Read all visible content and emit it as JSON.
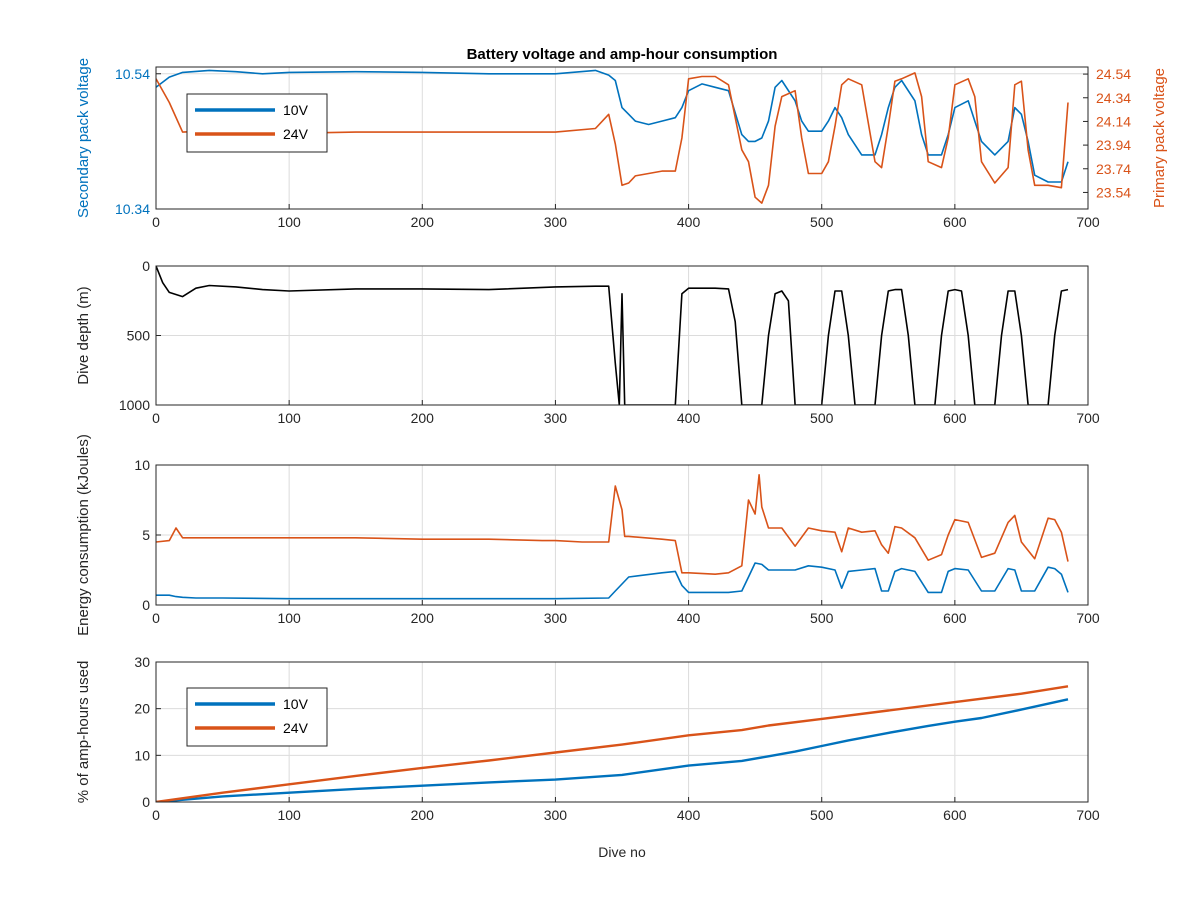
{
  "figure": {
    "title": "Battery voltage and amp-hour consumption",
    "xlabel": "Dive no"
  },
  "colors": {
    "series_10v": "#0072BD",
    "series_24v": "#D95319",
    "depth": "#000000",
    "grid": "#dcdcdc",
    "axis": "#262626"
  },
  "chart_data": [
    {
      "type": "line",
      "id": "voltage",
      "title": "Battery voltage and amp-hour consumption",
      "xlim": [
        0,
        700
      ],
      "xticks": [
        0,
        100,
        200,
        300,
        400,
        500,
        600,
        700
      ],
      "ylabel_left": "Secondary pack voltage",
      "ylim_left": [
        10.34,
        10.55
      ],
      "yticks_left": [
        10.34,
        10.54
      ],
      "ylabel_right": "Primary pack voltage",
      "ylim_right": [
        23.4,
        24.6
      ],
      "yticks_right": [
        23.54,
        23.74,
        23.94,
        24.14,
        24.34,
        24.54
      ],
      "legend": [
        "10V",
        "24V"
      ],
      "legend_position": "top-left",
      "grid": true,
      "series": [
        {
          "name": "10V",
          "axis": "left",
          "x": [
            0,
            10,
            20,
            40,
            60,
            80,
            100,
            150,
            200,
            250,
            300,
            330,
            340,
            345,
            350,
            355,
            360,
            370,
            380,
            390,
            395,
            400,
            410,
            420,
            430,
            440,
            445,
            450,
            455,
            460,
            465,
            470,
            480,
            485,
            490,
            500,
            505,
            510,
            515,
            520,
            530,
            540,
            545,
            550,
            555,
            560,
            570,
            575,
            580,
            590,
            595,
            600,
            610,
            615,
            620,
            630,
            640,
            645,
            650,
            655,
            660,
            670,
            680,
            685
          ],
          "y": [
            10.52,
            10.535,
            10.542,
            10.545,
            10.543,
            10.54,
            10.542,
            10.543,
            10.542,
            10.54,
            10.54,
            10.545,
            10.538,
            10.53,
            10.49,
            10.48,
            10.47,
            10.465,
            10.47,
            10.475,
            10.49,
            10.515,
            10.525,
            10.52,
            10.515,
            10.45,
            10.44,
            10.44,
            10.445,
            10.47,
            10.52,
            10.53,
            10.5,
            10.47,
            10.455,
            10.455,
            10.47,
            10.49,
            10.475,
            10.45,
            10.42,
            10.42,
            10.45,
            10.49,
            10.52,
            10.53,
            10.5,
            10.45,
            10.42,
            10.42,
            10.45,
            10.49,
            10.5,
            10.47,
            10.44,
            10.42,
            10.44,
            10.49,
            10.48,
            10.44,
            10.39,
            10.38,
            10.38,
            10.41
          ]
        },
        {
          "name": "24V",
          "axis": "right",
          "x": [
            0,
            10,
            20,
            40,
            60,
            80,
            100,
            150,
            200,
            250,
            300,
            330,
            340,
            345,
            350,
            355,
            360,
            370,
            380,
            390,
            395,
            400,
            410,
            420,
            430,
            440,
            445,
            450,
            455,
            460,
            465,
            470,
            480,
            485,
            490,
            500,
            505,
            510,
            515,
            520,
            530,
            540,
            545,
            550,
            555,
            560,
            570,
            575,
            580,
            590,
            595,
            600,
            610,
            615,
            620,
            630,
            640,
            645,
            650,
            655,
            660,
            670,
            680,
            685
          ],
          "y": [
            24.5,
            24.3,
            24.05,
            24.06,
            24.05,
            24.05,
            24.04,
            24.05,
            24.05,
            24.05,
            24.05,
            24.08,
            24.2,
            23.95,
            23.6,
            23.62,
            23.68,
            23.7,
            23.72,
            23.72,
            24.0,
            24.5,
            24.52,
            24.52,
            24.45,
            23.9,
            23.8,
            23.5,
            23.45,
            23.6,
            24.1,
            24.35,
            24.4,
            24.0,
            23.7,
            23.7,
            23.8,
            24.1,
            24.45,
            24.5,
            24.45,
            23.8,
            23.75,
            24.1,
            24.48,
            24.5,
            24.55,
            24.35,
            23.8,
            23.75,
            24.0,
            24.45,
            24.5,
            24.35,
            23.8,
            23.62,
            23.75,
            24.45,
            24.48,
            23.9,
            23.6,
            23.6,
            23.58,
            24.3
          ]
        }
      ]
    },
    {
      "type": "line",
      "id": "depth",
      "xlim": [
        0,
        700
      ],
      "xticks": [
        0,
        100,
        200,
        300,
        400,
        500,
        600,
        700
      ],
      "ylabel": "Dive depth (m)",
      "ylim": [
        0,
        1000
      ],
      "yreverse": true,
      "yticks": [
        0,
        500,
        1000
      ],
      "grid": true,
      "series": [
        {
          "name": "",
          "x": [
            0,
            5,
            10,
            20,
            30,
            40,
            60,
            80,
            100,
            150,
            200,
            250,
            300,
            330,
            340,
            345,
            348,
            350,
            352,
            355,
            360,
            380,
            390,
            395,
            400,
            420,
            430,
            435,
            440,
            445,
            455,
            460,
            465,
            470,
            475,
            480,
            485,
            490,
            500,
            505,
            510,
            515,
            520,
            525,
            535,
            540,
            545,
            550,
            555,
            560,
            565,
            570,
            575,
            585,
            590,
            595,
            600,
            605,
            610,
            615,
            620,
            630,
            635,
            640,
            645,
            650,
            655,
            665,
            670,
            675,
            680,
            685
          ],
          "y": [
            0,
            120,
            190,
            220,
            160,
            140,
            150,
            170,
            180,
            165,
            165,
            170,
            150,
            145,
            145,
            700,
            1000,
            200,
            1000,
            1000,
            1000,
            1000,
            1000,
            200,
            160,
            160,
            165,
            400,
            1000,
            1000,
            1000,
            500,
            200,
            180,
            250,
            1000,
            1000,
            1000,
            1000,
            500,
            180,
            180,
            500,
            1000,
            1000,
            1000,
            500,
            180,
            170,
            170,
            500,
            1000,
            1000,
            1000,
            500,
            180,
            170,
            180,
            500,
            1000,
            1000,
            1000,
            500,
            180,
            180,
            500,
            1000,
            1000,
            1000,
            500,
            180,
            170
          ]
        }
      ]
    },
    {
      "type": "line",
      "id": "energy",
      "xlim": [
        0,
        700
      ],
      "xticks": [
        0,
        100,
        200,
        300,
        400,
        500,
        600,
        700
      ],
      "ylabel": "Energy consumption (kJoules)",
      "ylim": [
        0,
        10
      ],
      "yticks": [
        0,
        5,
        10
      ],
      "grid": true,
      "series": [
        {
          "name": "24V",
          "x": [
            0,
            10,
            15,
            20,
            30,
            50,
            100,
            150,
            200,
            250,
            290,
            295,
            300,
            320,
            340,
            345,
            350,
            352,
            355,
            380,
            390,
            395,
            400,
            420,
            430,
            440,
            445,
            450,
            453,
            455,
            460,
            470,
            480,
            490,
            500,
            510,
            515,
            520,
            530,
            540,
            545,
            550,
            555,
            560,
            570,
            580,
            590,
            595,
            600,
            610,
            620,
            630,
            640,
            645,
            650,
            660,
            670,
            675,
            680,
            685
          ],
          "y": [
            4.5,
            4.6,
            5.5,
            4.8,
            4.8,
            4.8,
            4.8,
            4.8,
            4.7,
            4.7,
            4.6,
            4.6,
            4.6,
            4.5,
            4.5,
            8.5,
            6.8,
            4.9,
            4.9,
            4.7,
            4.6,
            2.3,
            2.3,
            2.2,
            2.3,
            2.8,
            7.5,
            6.5,
            9.3,
            7.0,
            5.5,
            5.5,
            4.2,
            5.5,
            5.3,
            5.2,
            3.8,
            5.5,
            5.2,
            5.3,
            4.3,
            3.7,
            5.6,
            5.5,
            4.8,
            3.2,
            3.6,
            5.0,
            6.1,
            5.9,
            3.4,
            3.7,
            5.9,
            6.4,
            4.5,
            3.3,
            6.2,
            6.1,
            5.2,
            3.1
          ]
        },
        {
          "name": "10V",
          "x": [
            0,
            10,
            15,
            20,
            30,
            50,
            100,
            150,
            200,
            250,
            300,
            340,
            345,
            350,
            355,
            380,
            390,
            395,
            400,
            420,
            430,
            440,
            445,
            450,
            455,
            460,
            470,
            480,
            490,
            500,
            510,
            515,
            520,
            530,
            540,
            545,
            550,
            555,
            560,
            570,
            580,
            590,
            595,
            600,
            610,
            620,
            630,
            640,
            645,
            650,
            660,
            670,
            675,
            680,
            685
          ],
          "y": [
            0.7,
            0.7,
            0.6,
            0.55,
            0.5,
            0.5,
            0.45,
            0.45,
            0.45,
            0.45,
            0.45,
            0.5,
            1.0,
            1.5,
            2.0,
            2.3,
            2.4,
            1.4,
            0.9,
            0.9,
            0.9,
            1.0,
            2.0,
            3.0,
            2.9,
            2.5,
            2.5,
            2.5,
            2.8,
            2.7,
            2.5,
            1.2,
            2.4,
            2.5,
            2.6,
            1.0,
            1.0,
            2.4,
            2.6,
            2.4,
            0.9,
            0.9,
            2.4,
            2.6,
            2.5,
            1.0,
            1.0,
            2.6,
            2.5,
            1.0,
            1.0,
            2.7,
            2.6,
            2.2,
            0.9
          ]
        }
      ]
    },
    {
      "type": "line",
      "id": "amphours",
      "xlim": [
        0,
        700
      ],
      "xticks": [
        0,
        100,
        200,
        300,
        400,
        500,
        600,
        700
      ],
      "xlabel": "Dive no",
      "ylabel": "% of amp-hours used",
      "ylim": [
        0,
        30
      ],
      "yticks": [
        0,
        10,
        20,
        30
      ],
      "legend": [
        "10V",
        "24V"
      ],
      "legend_position": "top-left",
      "grid": true,
      "series": [
        {
          "name": "10V",
          "x": [
            0,
            50,
            100,
            150,
            200,
            250,
            300,
            350,
            380,
            400,
            440,
            460,
            480,
            500,
            520,
            550,
            580,
            600,
            620,
            650,
            685
          ],
          "y": [
            0,
            1.2,
            2.0,
            2.8,
            3.5,
            4.2,
            4.8,
            5.8,
            7.0,
            7.8,
            8.8,
            9.8,
            10.8,
            12.0,
            13.2,
            14.8,
            16.3,
            17.2,
            18.0,
            19.8,
            22.0
          ]
        },
        {
          "name": "24V",
          "x": [
            0,
            50,
            100,
            150,
            200,
            250,
            300,
            350,
            400,
            440,
            460,
            500,
            550,
            600,
            650,
            685
          ],
          "y": [
            0,
            2.0,
            3.8,
            5.6,
            7.3,
            8.9,
            10.6,
            12.3,
            14.3,
            15.4,
            16.4,
            17.8,
            19.6,
            21.4,
            23.2,
            24.8
          ]
        }
      ]
    }
  ]
}
